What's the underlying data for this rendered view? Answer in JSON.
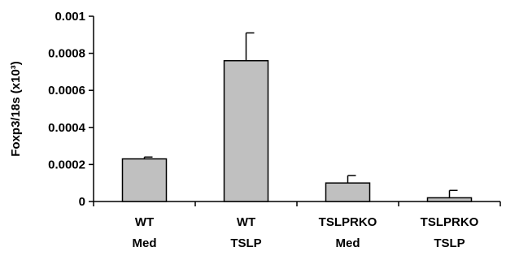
{
  "chart_data": {
    "type": "bar",
    "categories": [
      [
        "WT",
        "Med"
      ],
      [
        "WT",
        "TSLP"
      ],
      [
        "TSLPRKO",
        "Med"
      ],
      [
        "TSLPRKO",
        "TSLP"
      ]
    ],
    "values": [
      0.00023,
      0.00076,
      0.0001,
      2e-05
    ],
    "error_bars": [
      1e-05,
      0.00015,
      4e-05,
      4e-05
    ],
    "ylabel": "Foxp3/18s (x10³)",
    "xlabel": "",
    "ylim": [
      0,
      0.001
    ],
    "yticks": [
      0,
      0.0002,
      0.0004,
      0.0006,
      0.0008,
      0.001
    ],
    "ytick_labels": [
      "0",
      "0.0002",
      "0.0004",
      "0.0006",
      "0.0008",
      "0.001"
    ],
    "grid": false,
    "bar_color": "#c0c0c0",
    "edge_color": "#000000"
  }
}
